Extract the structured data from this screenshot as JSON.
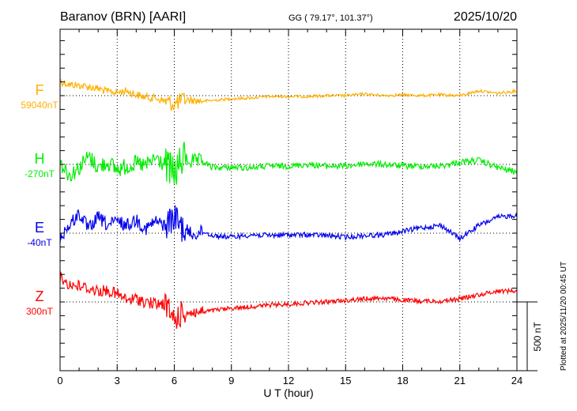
{
  "header": {
    "station": "Baranov (BRN)  [AARI]",
    "coords": "GG ( 79.17°, 101.37°)",
    "date": "2025/10/20"
  },
  "footer": {
    "plotted": "Plotted at 2025/11/20 00:45 UT"
  },
  "chart_data": {
    "type": "line",
    "title": "Baranov (BRN)  [AARI]",
    "xlabel": "U T (hour)",
    "xlim": [
      0,
      24
    ],
    "xticks": [
      "0",
      "3",
      "6",
      "9",
      "12",
      "15",
      "18",
      "21",
      "24"
    ],
    "grid": "dotted vertical every 3 hours, dotted baseline per series",
    "scale_bar": "500 nT",
    "units": "nT offset from baseline",
    "x": [
      0,
      0.5,
      1,
      1.5,
      2,
      2.5,
      3,
      3.5,
      4,
      4.5,
      5,
      5.5,
      6,
      6.5,
      7,
      7.5,
      8,
      9,
      10,
      11,
      12,
      13,
      14,
      15,
      16,
      17,
      18,
      19,
      20,
      21,
      22,
      23,
      24
    ],
    "series": [
      {
        "name": "F",
        "baseline": "59040nT",
        "color": "#ffb000",
        "values": [
          104,
          80,
          75,
          63,
          52,
          29,
          23,
          35,
          6,
          -12,
          -17,
          -40,
          -63,
          -29,
          -35,
          -40,
          -35,
          -23,
          -17,
          -6,
          -6,
          -6,
          0,
          0,
          12,
          0,
          6,
          0,
          6,
          0,
          35,
          17,
          35
        ]
      },
      {
        "name": "H",
        "baseline": "-270nT",
        "color": "#00ee00",
        "values": [
          17,
          -80,
          -23,
          57,
          -23,
          17,
          -40,
          -12,
          6,
          -12,
          46,
          0,
          -69,
          46,
          17,
          17,
          -23,
          -23,
          -23,
          -12,
          -12,
          0,
          -12,
          -12,
          6,
          0,
          -12,
          -12,
          -12,
          17,
          29,
          -23,
          -57
        ]
      },
      {
        "name": "E",
        "baseline": "-40nT",
        "color": "#0000ee",
        "values": [
          -29,
          57,
          144,
          29,
          115,
          57,
          86,
          57,
          98,
          29,
          86,
          57,
          115,
          29,
          -12,
          12,
          -17,
          -29,
          -12,
          -17,
          -12,
          -12,
          -17,
          -29,
          -17,
          -12,
          12,
          40,
          57,
          -40,
          57,
          115,
          132
        ]
      },
      {
        "name": "Z",
        "baseline": "300nT",
        "color": "#ff0000",
        "values": [
          173,
          127,
          115,
          98,
          80,
          80,
          57,
          12,
          23,
          0,
          -17,
          -17,
          -132,
          -75,
          -75,
          -75,
          -63,
          -46,
          -35,
          -23,
          -17,
          -6,
          0,
          12,
          23,
          29,
          12,
          6,
          6,
          23,
          52,
          80,
          80
        ]
      }
    ]
  }
}
